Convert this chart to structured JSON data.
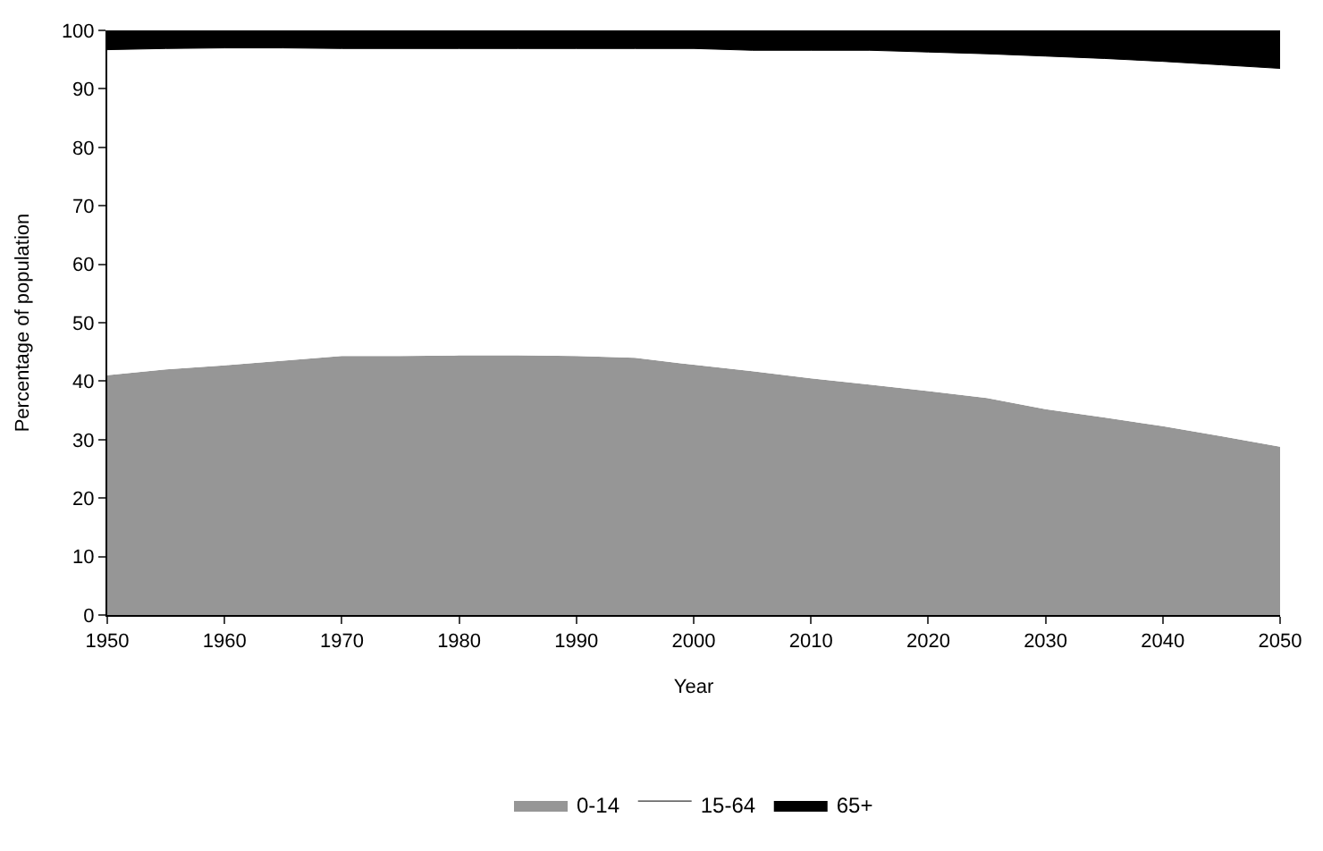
{
  "chart_data": {
    "type": "area",
    "stacked": true,
    "xlabel": "Year",
    "ylabel": "Percentage of population",
    "x": [
      1950,
      1955,
      1960,
      1965,
      1970,
      1975,
      1980,
      1985,
      1990,
      1995,
      2000,
      2005,
      2010,
      2015,
      2020,
      2025,
      2030,
      2035,
      2040,
      2045,
      2050
    ],
    "series": [
      {
        "name": "0-14",
        "color": "#969696",
        "values": [
          41.0,
          42.0,
          42.7,
          43.5,
          44.3,
          44.3,
          44.4,
          44.4,
          44.3,
          44.0,
          42.8,
          41.7,
          40.5,
          39.4,
          38.3,
          37.1,
          35.2,
          33.8,
          32.3,
          30.6,
          28.8
        ]
      },
      {
        "name": "15-64",
        "color": "#ffffff",
        "values": [
          55.7,
          54.9,
          54.3,
          53.5,
          52.6,
          52.6,
          52.5,
          52.5,
          52.6,
          52.9,
          54.1,
          54.9,
          56.1,
          57.2,
          58.0,
          58.9,
          60.4,
          61.4,
          62.4,
          63.5,
          64.7
        ]
      },
      {
        "name": "65+",
        "color": "#000000",
        "values": [
          3.3,
          3.1,
          3.0,
          3.0,
          3.1,
          3.1,
          3.1,
          3.1,
          3.1,
          3.1,
          3.1,
          3.4,
          3.4,
          3.4,
          3.7,
          4.0,
          4.4,
          4.8,
          5.3,
          5.9,
          6.5
        ]
      }
    ],
    "xlim": [
      1950,
      2050
    ],
    "xticks": [
      1950,
      1960,
      1970,
      1980,
      1990,
      2000,
      2010,
      2020,
      2030,
      2040,
      2050
    ],
    "ylim": [
      0,
      100
    ],
    "yticks": [
      0,
      10,
      20,
      30,
      40,
      50,
      60,
      70,
      80,
      90,
      100
    ],
    "grid": false,
    "legend": "bottom"
  }
}
